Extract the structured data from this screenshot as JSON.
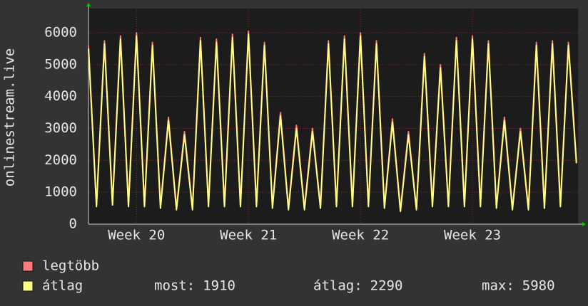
{
  "chart_data": {
    "type": "line",
    "y_label": "onlinestream.live",
    "x": [
      0,
      0.5,
      1,
      1.5,
      2,
      2.5,
      3,
      3.5,
      4,
      4.5,
      5,
      5.5,
      6,
      6.5,
      7,
      7.5,
      8,
      8.5,
      9,
      9.5,
      10,
      10.5,
      11,
      11.5,
      12,
      12.5,
      13,
      13.5,
      14,
      14.5,
      15,
      15.5,
      16,
      16.5,
      17,
      17.5,
      18,
      18.5,
      19,
      19.5,
      20,
      20.5,
      21,
      21.5,
      22,
      22.5,
      23,
      23.5,
      24,
      24.5,
      25,
      25.5,
      26,
      26.5,
      27,
      27.5,
      28,
      28.5,
      29,
      29.5,
      30,
      30.5
    ],
    "xlim": [
      0,
      30.6
    ],
    "xticks": [
      {
        "value": 3,
        "label": "Week 20"
      },
      {
        "value": 10,
        "label": "Week 21"
      },
      {
        "value": 17,
        "label": "Week 22"
      },
      {
        "value": 24,
        "label": "Week 23"
      }
    ],
    "ylim": [
      0,
      6760
    ],
    "yticks": [
      0,
      1000,
      2000,
      3000,
      4000,
      5000,
      6000
    ],
    "grid": true,
    "series": [
      {
        "name": "legtöbb",
        "color": "#ff7a7a",
        "values": [
          5600,
          600,
          5750,
          650,
          5900,
          600,
          6000,
          600,
          5700,
          550,
          3350,
          500,
          2900,
          500,
          5850,
          600,
          5800,
          600,
          5950,
          600,
          6050,
          600,
          5700,
          550,
          3500,
          500,
          3100,
          500,
          3000,
          550,
          5750,
          600,
          5900,
          600,
          6000,
          600,
          5750,
          550,
          3300,
          450,
          2900,
          500,
          5350,
          600,
          5000,
          600,
          5850,
          600,
          5900,
          600,
          5750,
          550,
          3350,
          500,
          3000,
          500,
          5700,
          550,
          5750,
          600,
          5700,
          2000
        ]
      },
      {
        "name": "átlag",
        "color": "#ffff80",
        "values": [
          5500,
          550,
          5650,
          600,
          5800,
          550,
          5900,
          550,
          5600,
          500,
          3250,
          450,
          2800,
          450,
          5750,
          550,
          5700,
          550,
          5850,
          550,
          5950,
          550,
          5600,
          500,
          3400,
          450,
          3000,
          450,
          2900,
          500,
          5650,
          550,
          5800,
          550,
          5900,
          550,
          5650,
          500,
          3200,
          400,
          2800,
          450,
          5250,
          550,
          4900,
          550,
          5750,
          550,
          5800,
          550,
          5650,
          500,
          3250,
          450,
          2900,
          450,
          5600,
          500,
          5650,
          550,
          5600,
          1910
        ]
      }
    ],
    "stats": [
      {
        "label": "most:",
        "value": 1910
      },
      {
        "label": "átlag:",
        "value": 2290
      },
      {
        "label": "max:",
        "value": 5980
      }
    ]
  }
}
